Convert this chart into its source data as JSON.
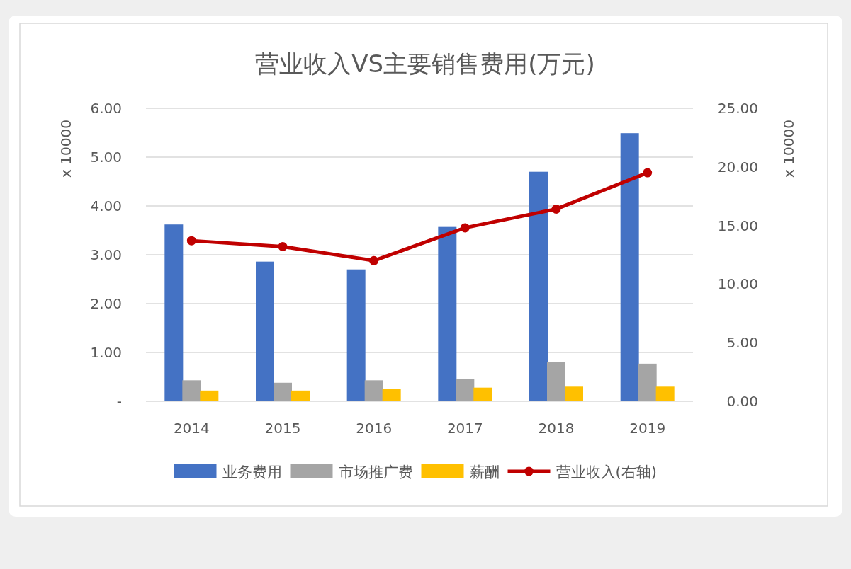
{
  "chart_data": {
    "type": "bar",
    "title": "营业收入VS主要销售费用(万元)",
    "categories": [
      "2014",
      "2015",
      "2016",
      "2017",
      "2018",
      "2019"
    ],
    "ylabel": "x 10000",
    "y2label": "x 10000",
    "ylim": [
      0,
      6
    ],
    "yticks": [
      {
        "value": 0,
        "label": "-"
      },
      {
        "value": 1,
        "label": "1.00"
      },
      {
        "value": 2,
        "label": "2.00"
      },
      {
        "value": 3,
        "label": "3.00"
      },
      {
        "value": 4,
        "label": "4.00"
      },
      {
        "value": 5,
        "label": "5.00"
      },
      {
        "value": 6,
        "label": "6.00"
      }
    ],
    "y2lim": [
      0,
      25
    ],
    "y2ticks": [
      {
        "value": 0,
        "label": "0.00"
      },
      {
        "value": 5,
        "label": "5.00"
      },
      {
        "value": 10,
        "label": "10.00"
      },
      {
        "value": 15,
        "label": "15.00"
      },
      {
        "value": 20,
        "label": "20.00"
      },
      {
        "value": 25,
        "label": "25.00"
      }
    ],
    "grid": "y",
    "legend": "bottom",
    "series": [
      {
        "name": "业务费用",
        "color": "#4472c4",
        "values": [
          3.62,
          2.86,
          2.7,
          3.57,
          4.7,
          5.49
        ]
      },
      {
        "name": "市场推广费",
        "color": "#a5a5a5",
        "values": [
          0.43,
          0.38,
          0.43,
          0.46,
          0.8,
          0.77
        ]
      },
      {
        "name": "薪酬",
        "color": "#ffc000",
        "values": [
          0.22,
          0.22,
          0.25,
          0.28,
          0.3,
          0.3
        ]
      },
      {
        "name": "营业收入(右轴)",
        "type": "line",
        "axis": "y2",
        "marker": "circle",
        "color": "#c00000",
        "values": [
          13.7,
          13.2,
          12.0,
          14.8,
          16.4,
          19.5
        ]
      }
    ]
  }
}
